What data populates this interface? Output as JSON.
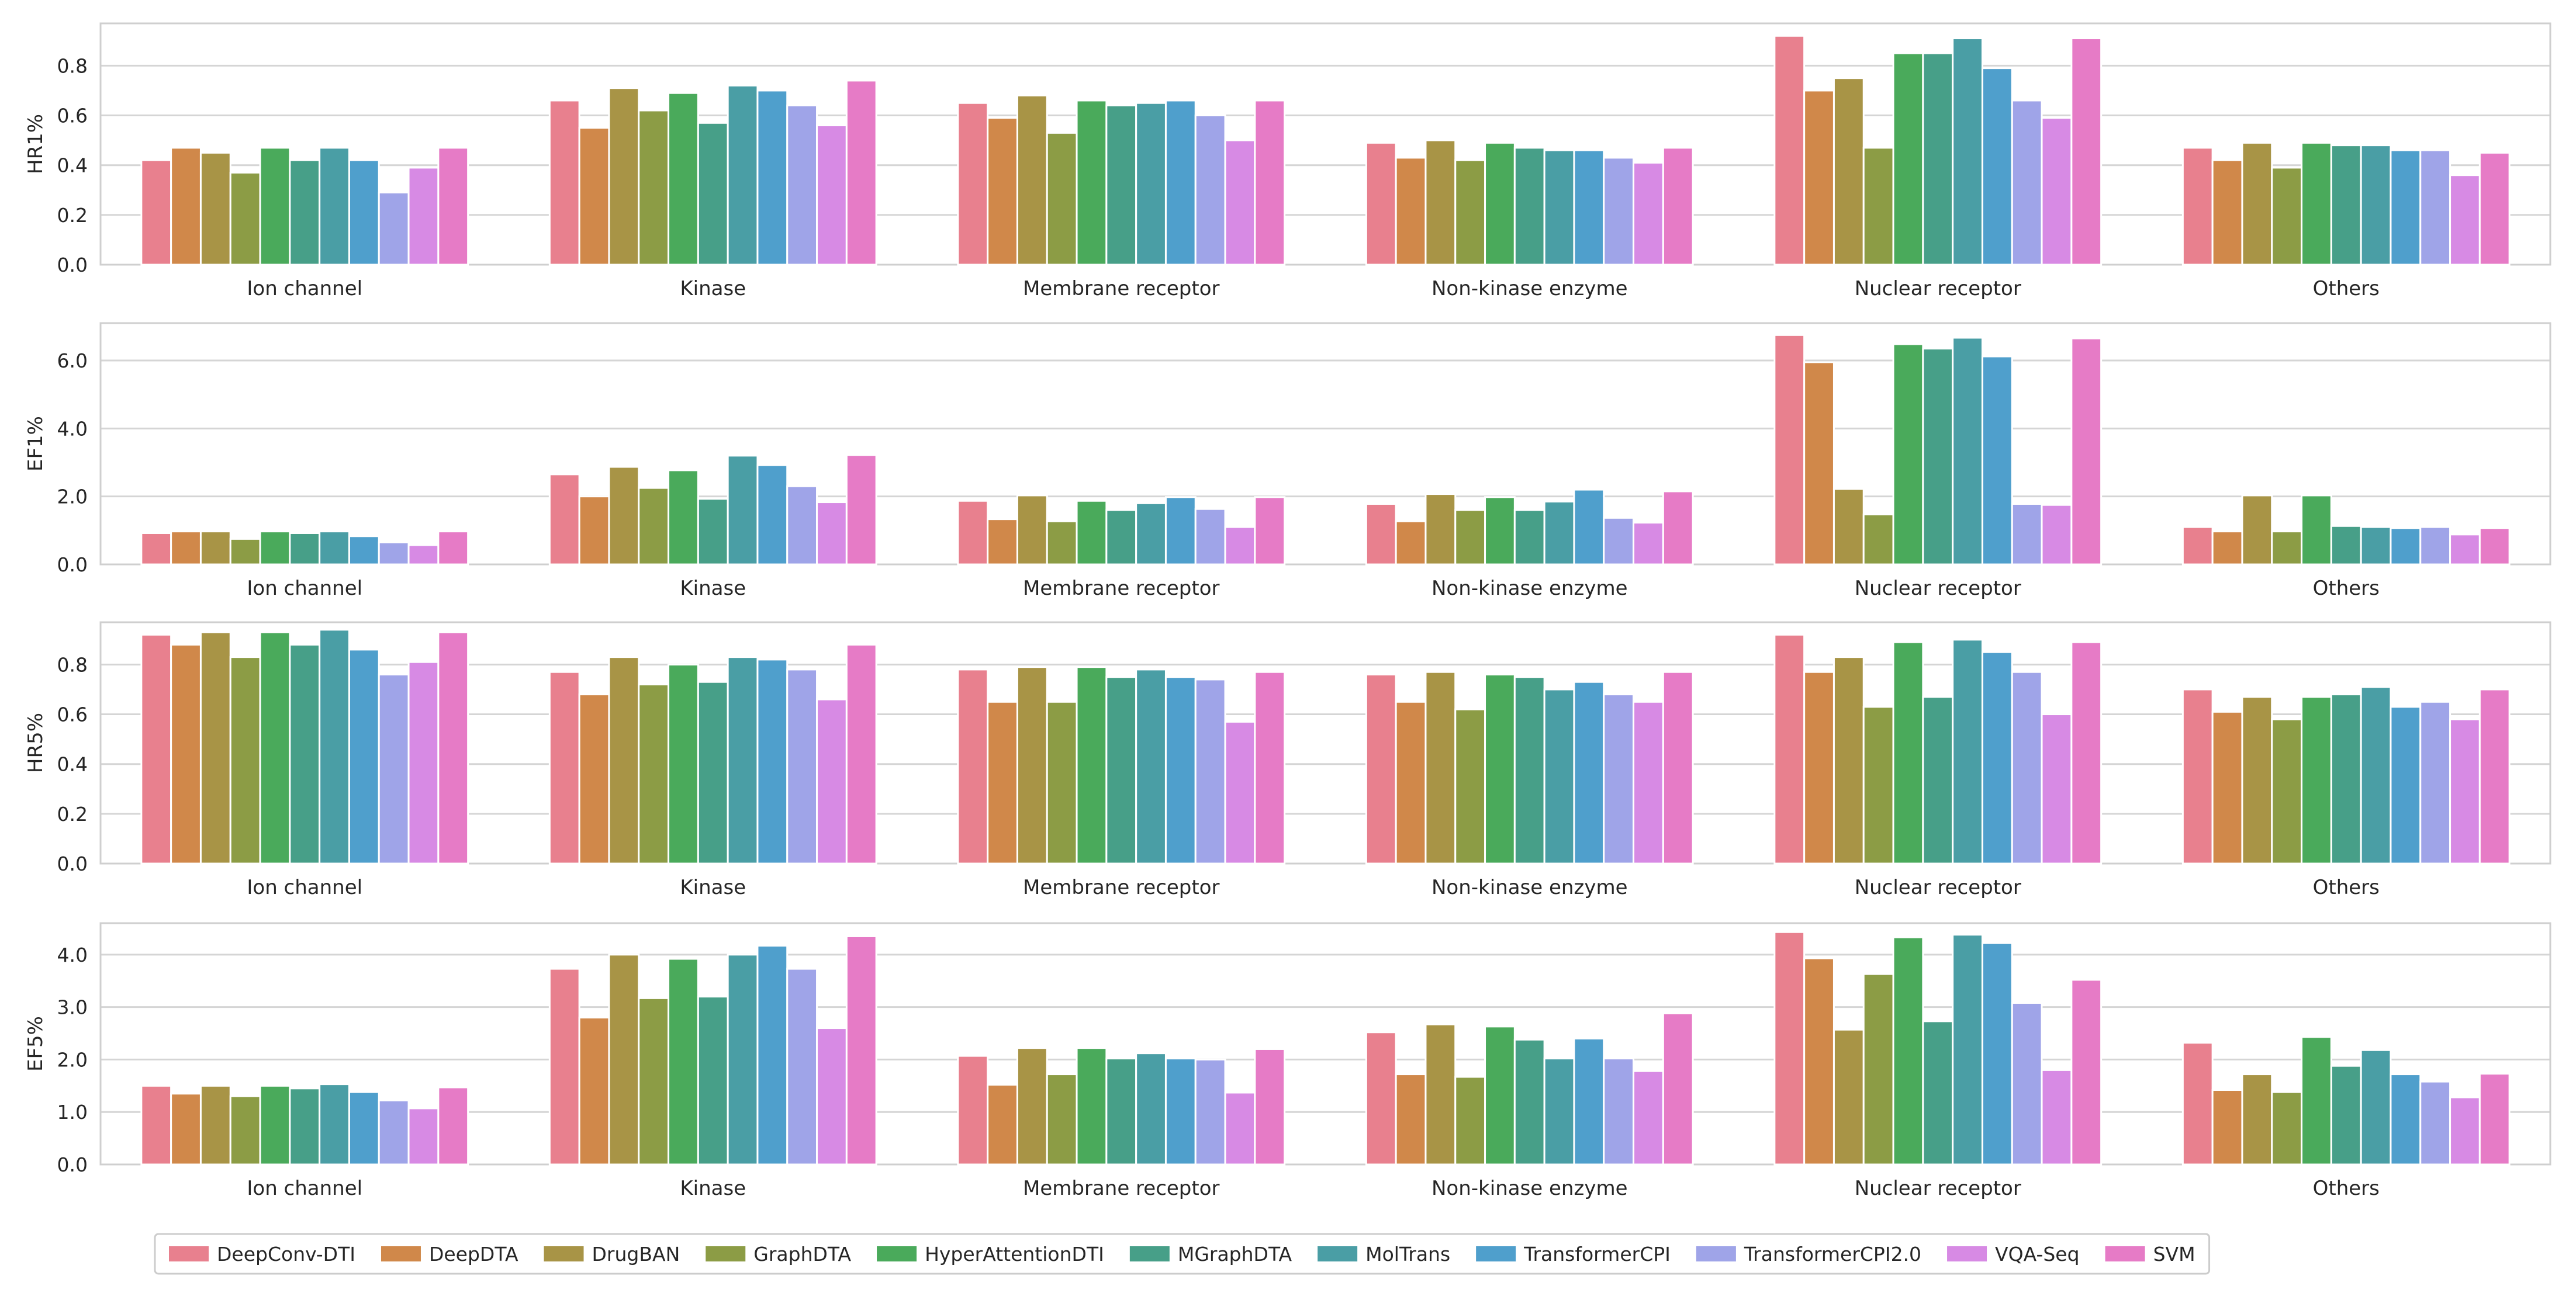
{
  "models": [
    "DeepConv-DTI",
    "DeepDTA",
    "DrugBAN",
    "GraphDTA",
    "HyperAttentionDTI",
    "MGraphDTA",
    "MolTrans",
    "TransformerCPI",
    "TransformerCPI2.0",
    "VQA-Seq",
    "SVM"
  ],
  "colors": [
    "#e8808e",
    "#d0884a",
    "#a89446",
    "#8c9c45",
    "#4aaa5b",
    "#479f88",
    "#4a9ea5",
    "#4f9fcc",
    "#9fa4e8",
    "#d78ae4",
    "#e67bc6"
  ],
  "chart_data": [
    {
      "type": "bar",
      "ylabel": "HR1%",
      "ylim": [
        0,
        0.97
      ],
      "yticks": [
        0.0,
        0.2,
        0.4,
        0.6,
        0.8
      ],
      "ytick_labels": [
        "0.0",
        "0.2",
        "0.4",
        "0.6",
        "0.8"
      ],
      "categories": [
        "Ion channel",
        "Kinase",
        "Membrane receptor",
        "Non-kinase enzyme",
        "Nuclear receptor",
        "Others"
      ],
      "values": [
        [
          0.42,
          0.47,
          0.45,
          0.37,
          0.47,
          0.42,
          0.47,
          0.42,
          0.29,
          0.39,
          0.47
        ],
        [
          0.66,
          0.55,
          0.71,
          0.62,
          0.69,
          0.57,
          0.72,
          0.7,
          0.64,
          0.56,
          0.74
        ],
        [
          0.65,
          0.59,
          0.68,
          0.53,
          0.66,
          0.64,
          0.65,
          0.66,
          0.6,
          0.5,
          0.66
        ],
        [
          0.49,
          0.43,
          0.5,
          0.42,
          0.49,
          0.47,
          0.46,
          0.46,
          0.43,
          0.41,
          0.47
        ],
        [
          0.92,
          0.7,
          0.75,
          0.47,
          0.85,
          0.85,
          0.91,
          0.79,
          0.66,
          0.59,
          0.91
        ],
        [
          0.47,
          0.42,
          0.49,
          0.39,
          0.49,
          0.48,
          0.48,
          0.46,
          0.46,
          0.36,
          0.45
        ]
      ]
    },
    {
      "type": "bar",
      "ylabel": "EF1%",
      "ylim": [
        0,
        7.1
      ],
      "yticks": [
        0.0,
        2.0,
        4.0,
        6.0
      ],
      "ytick_labels": [
        "0.0",
        "2.0",
        "4.0",
        "6.0"
      ],
      "categories": [
        "Ion channel",
        "Kinase",
        "Membrane receptor",
        "Non-kinase enzyme",
        "Nuclear receptor",
        "Others"
      ],
      "values": [
        [
          0.92,
          0.97,
          0.97,
          0.75,
          0.97,
          0.92,
          0.97,
          0.83,
          0.65,
          0.57,
          0.97
        ],
        [
          2.65,
          2.0,
          2.87,
          2.25,
          2.77,
          1.93,
          3.2,
          2.92,
          2.3,
          1.83,
          3.22
        ],
        [
          1.87,
          1.33,
          2.03,
          1.27,
          1.87,
          1.6,
          1.8,
          1.98,
          1.63,
          1.1,
          1.98
        ],
        [
          1.78,
          1.27,
          2.07,
          1.6,
          1.98,
          1.6,
          1.85,
          2.2,
          1.37,
          1.23,
          2.15
        ],
        [
          6.75,
          5.95,
          2.22,
          1.47,
          6.48,
          6.35,
          6.67,
          6.12,
          1.78,
          1.75,
          6.65
        ],
        [
          1.1,
          0.97,
          2.03,
          0.97,
          2.03,
          1.13,
          1.1,
          1.07,
          1.1,
          0.88,
          1.07
        ]
      ]
    },
    {
      "type": "bar",
      "ylabel": "HR5%",
      "ylim": [
        0,
        0.97
      ],
      "yticks": [
        0.0,
        0.2,
        0.4,
        0.6,
        0.8
      ],
      "ytick_labels": [
        "0.0",
        "0.2",
        "0.4",
        "0.6",
        "0.8"
      ],
      "categories": [
        "Ion channel",
        "Kinase",
        "Membrane receptor",
        "Non-kinase enzyme",
        "Nuclear receptor",
        "Others"
      ],
      "values": [
        [
          0.92,
          0.88,
          0.93,
          0.83,
          0.93,
          0.88,
          0.94,
          0.86,
          0.76,
          0.81,
          0.93
        ],
        [
          0.77,
          0.68,
          0.83,
          0.72,
          0.8,
          0.73,
          0.83,
          0.82,
          0.78,
          0.66,
          0.88
        ],
        [
          0.78,
          0.65,
          0.79,
          0.65,
          0.79,
          0.75,
          0.78,
          0.75,
          0.74,
          0.57,
          0.77
        ],
        [
          0.76,
          0.65,
          0.77,
          0.62,
          0.76,
          0.75,
          0.7,
          0.73,
          0.68,
          0.65,
          0.77
        ],
        [
          0.92,
          0.77,
          0.83,
          0.63,
          0.89,
          0.67,
          0.9,
          0.85,
          0.77,
          0.6,
          0.89
        ],
        [
          0.7,
          0.61,
          0.67,
          0.58,
          0.67,
          0.68,
          0.71,
          0.63,
          0.65,
          0.58,
          0.7
        ]
      ]
    },
    {
      "type": "bar",
      "ylabel": "EF5%",
      "ylim": [
        0,
        4.6
      ],
      "yticks": [
        0.0,
        1.0,
        2.0,
        3.0,
        4.0
      ],
      "ytick_labels": [
        "0.0",
        "1.0",
        "2.0",
        "3.0",
        "4.0"
      ],
      "categories": [
        "Ion channel",
        "Kinase",
        "Membrane receptor",
        "Non-kinase enzyme",
        "Nuclear receptor",
        "Others"
      ],
      "values": [
        [
          1.5,
          1.35,
          1.5,
          1.3,
          1.5,
          1.45,
          1.53,
          1.38,
          1.22,
          1.07,
          1.47
        ],
        [
          3.73,
          2.8,
          4.0,
          3.17,
          3.92,
          3.2,
          4.0,
          4.17,
          3.73,
          2.6,
          4.35
        ],
        [
          2.07,
          1.52,
          2.22,
          1.72,
          2.22,
          2.02,
          2.12,
          2.02,
          2.0,
          1.37,
          2.2
        ],
        [
          2.52,
          1.72,
          2.67,
          1.67,
          2.63,
          2.38,
          2.02,
          2.4,
          2.02,
          1.78,
          2.88
        ],
        [
          4.43,
          3.93,
          2.57,
          3.63,
          4.33,
          2.73,
          4.38,
          4.22,
          3.08,
          1.8,
          3.52
        ],
        [
          2.32,
          1.42,
          1.72,
          1.38,
          2.43,
          1.88,
          2.18,
          1.72,
          1.58,
          1.28,
          1.73
        ]
      ]
    }
  ]
}
